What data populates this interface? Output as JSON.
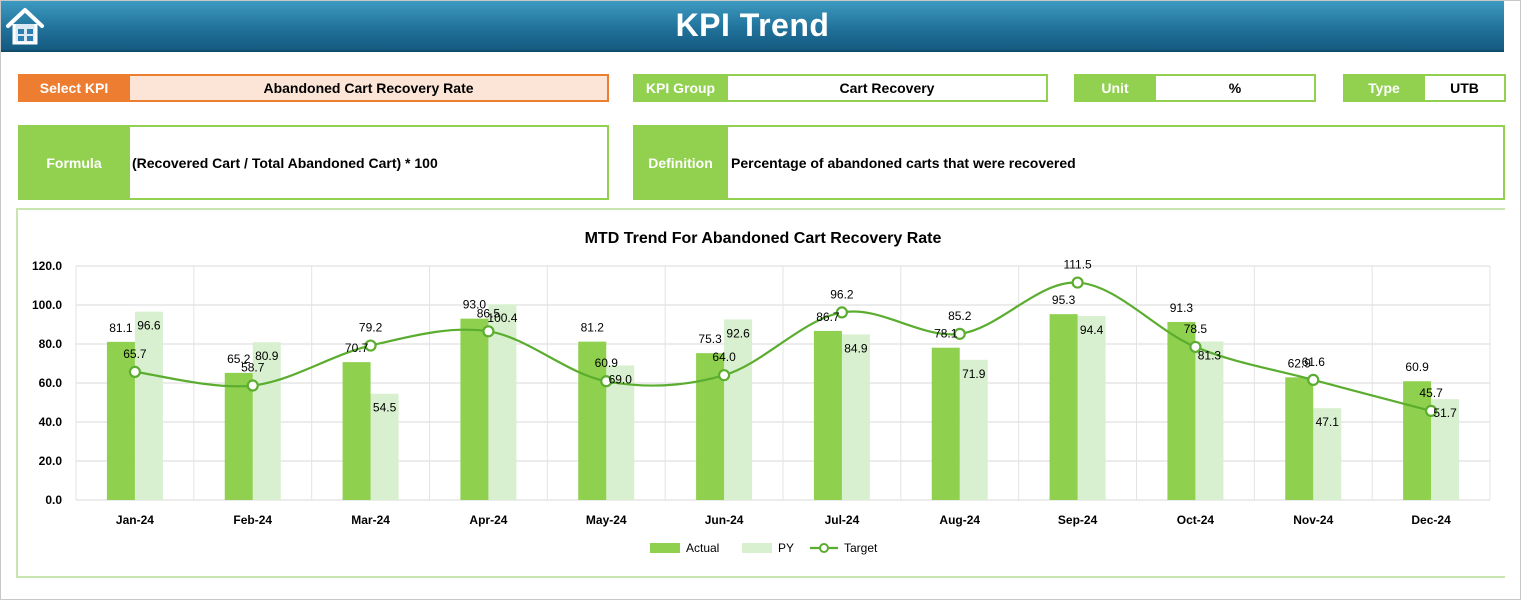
{
  "header": {
    "title": "KPI Trend"
  },
  "controls": {
    "select_kpi_label": "Select KPI",
    "select_kpi_value": "Abandoned Cart Recovery Rate",
    "kpi_group_label": "KPI Group",
    "kpi_group_value": "Cart Recovery",
    "unit_label": "Unit",
    "unit_value": "%",
    "type_label": "Type",
    "type_value": "UTB",
    "formula_label": "Formula",
    "formula_value": "(Recovered Cart / Total Abandoned Cart) * 100",
    "definition_label": "Definition",
    "definition_value": "Percentage of abandoned carts that were recovered"
  },
  "colors": {
    "header_blue": "#1f6f98",
    "select_orange": "#ed7d31",
    "select_fill": "#fce4d6",
    "green": "#92d050",
    "actual": "#8fd14f",
    "py": "#d8f0cf",
    "target": "#5aad2e"
  },
  "chart_data": {
    "type": "bar",
    "title": "MTD Trend For Abandoned Cart Recovery Rate",
    "categories": [
      "Jan-24",
      "Feb-24",
      "Mar-24",
      "Apr-24",
      "May-24",
      "Jun-24",
      "Jul-24",
      "Aug-24",
      "Sep-24",
      "Oct-24",
      "Nov-24",
      "Dec-24"
    ],
    "series": [
      {
        "name": "Actual",
        "kind": "bar",
        "values": [
          81.1,
          65.2,
          70.7,
          93.0,
          81.2,
          75.3,
          86.7,
          78.1,
          95.3,
          91.3,
          62.9,
          60.9
        ]
      },
      {
        "name": "PY",
        "kind": "bar",
        "values": [
          96.6,
          80.9,
          54.5,
          100.4,
          69.0,
          92.6,
          84.9,
          71.9,
          94.4,
          81.3,
          47.1,
          51.7
        ]
      },
      {
        "name": "Target",
        "kind": "line",
        "values": [
          65.7,
          58.7,
          79.2,
          86.5,
          60.9,
          64.0,
          96.2,
          85.2,
          111.5,
          78.5,
          61.6,
          45.7
        ]
      }
    ],
    "y_ticks": [
      "0.0",
      "20.0",
      "40.0",
      "60.0",
      "80.0",
      "100.0",
      "120.0"
    ],
    "ylim": [
      0,
      120
    ],
    "grid": true,
    "legend_position": "bottom"
  }
}
